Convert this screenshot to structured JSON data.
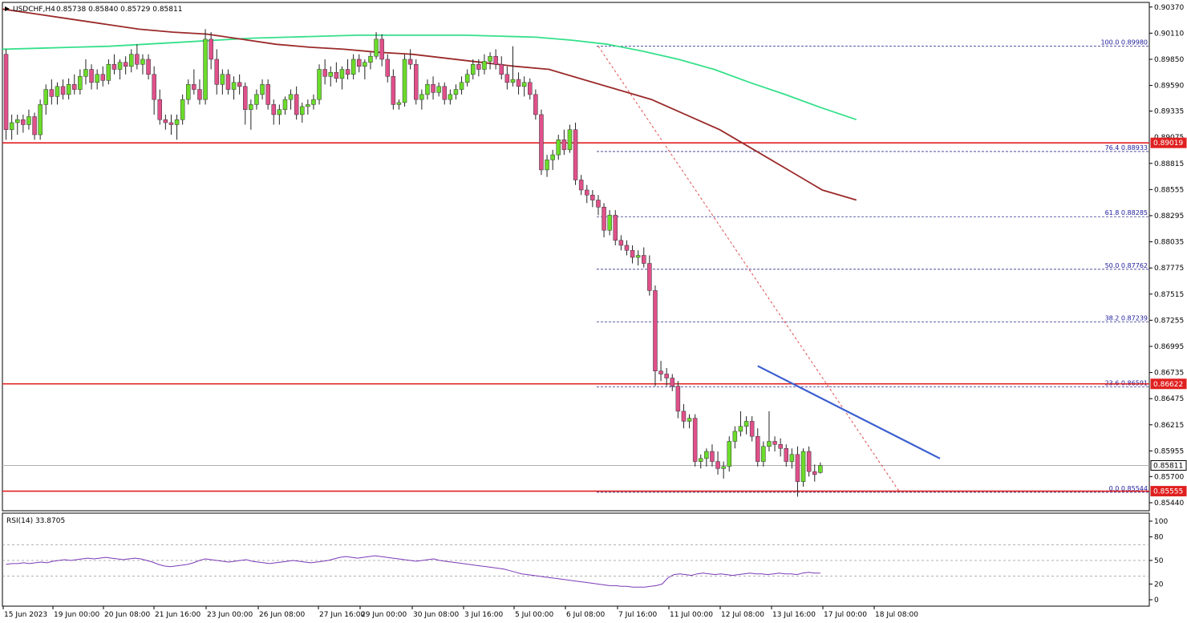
{
  "header": {
    "symbol": "USDCHF,H4",
    "ohlc": "0.85738 0.85840 0.85729 0.85811"
  },
  "rsi_header": "RSI(14) 33.8705",
  "colors": {
    "bull": "#6bdc2a",
    "bear": "#e0508a",
    "wick": "#222222",
    "ma_red": "#9b2a2a",
    "ma_green": "#35e08a",
    "support": "#e02020",
    "trend": "#3c5fd0",
    "fib_line": "#303090",
    "diag": "#e05050",
    "rsi": "#7b3ab8",
    "current_line": "#b0b0b0"
  },
  "chart_data": [
    {
      "type": "candlestick",
      "title": "USDCHF,H4",
      "ylim": [
        0.854,
        0.904
      ],
      "x_categories": [
        "15 Jun 2023",
        "19 Jun 00:00",
        "20 Jun 08:00",
        "21 Jun 16:00",
        "23 Jun 00:00",
        "26 Jun 08:00",
        "27 Jun 16:00",
        "29 Jun 00:00",
        "30 Jun 08:00",
        "3 Jul 16:00",
        "5 Jul 00:00",
        "6 Jul 08:00",
        "7 Jul 16:00",
        "11 Jul 00:00",
        "12 Jul 08:00",
        "13 Jul 16:00",
        "17 Jul 00:00",
        "18 Jul 08:00"
      ],
      "y_ticks": [
        "0.90370",
        "0.90110",
        "0.89850",
        "0.89590",
        "0.89335",
        "0.88815",
        "0.88555",
        "0.88295",
        "0.88035",
        "0.87775",
        "0.87515",
        "0.87255",
        "0.86995",
        "0.86735",
        "0.86475",
        "0.86215",
        "0.85955",
        "0.85700",
        "0.85440"
      ],
      "overlay_tick": "0.89075",
      "price_boxes": [
        {
          "label": "0.89019",
          "value": 0.89019,
          "style": "red"
        },
        {
          "label": "0.86622",
          "value": 0.86622,
          "style": "red"
        },
        {
          "label": "0.85811",
          "value": 0.85811,
          "style": "current"
        },
        {
          "label": "0.85555",
          "value": 0.85555,
          "style": "red"
        }
      ],
      "support_levels": [
        0.89019,
        0.86622,
        0.85555
      ],
      "current_price": 0.85811,
      "fibonacci": [
        {
          "label": "100.0 0.89980",
          "value": 0.8998
        },
        {
          "label": "76.4 0.88933",
          "value": 0.88933
        },
        {
          "label": "61.8 0.88285",
          "value": 0.88285
        },
        {
          "label": "50.0 0.87762",
          "value": 0.87762
        },
        {
          "label": "38.2 0.87239",
          "value": 0.87239
        },
        {
          "label": "23.6 0.86591",
          "value": 0.86591
        },
        {
          "label": "0.0 0.85544",
          "value": 0.85544
        }
      ],
      "candles": [
        [
          0.899,
          0.8995,
          0.8905,
          0.8915
        ],
        [
          0.8915,
          0.893,
          0.8905,
          0.8922
        ],
        [
          0.8922,
          0.893,
          0.891,
          0.8925
        ],
        [
          0.8925,
          0.893,
          0.8912,
          0.892
        ],
        [
          0.892,
          0.8935,
          0.8915,
          0.8928
        ],
        [
          0.8928,
          0.8932,
          0.8905,
          0.891
        ],
        [
          0.891,
          0.8945,
          0.8905,
          0.894
        ],
        [
          0.894,
          0.896,
          0.893,
          0.8955
        ],
        [
          0.8955,
          0.8965,
          0.894,
          0.8948
        ],
        [
          0.8948,
          0.8962,
          0.894,
          0.8958
        ],
        [
          0.8958,
          0.8965,
          0.8945,
          0.895
        ],
        [
          0.895,
          0.8966,
          0.8945,
          0.896
        ],
        [
          0.896,
          0.897,
          0.895,
          0.8955
        ],
        [
          0.8955,
          0.8975,
          0.895,
          0.8968
        ],
        [
          0.8968,
          0.8985,
          0.896,
          0.8975
        ],
        [
          0.8975,
          0.898,
          0.8955,
          0.8962
        ],
        [
          0.8962,
          0.8975,
          0.8955,
          0.897
        ],
        [
          0.897,
          0.8978,
          0.8958,
          0.8964
        ],
        [
          0.8964,
          0.8985,
          0.896,
          0.898
        ],
        [
          0.898,
          0.899,
          0.897,
          0.8975
        ],
        [
          0.8975,
          0.8985,
          0.8965,
          0.8982
        ],
        [
          0.8982,
          0.8988,
          0.897,
          0.8978
        ],
        [
          0.8978,
          0.8995,
          0.8972,
          0.899
        ],
        [
          0.899,
          0.9,
          0.8975,
          0.898
        ],
        [
          0.898,
          0.899,
          0.897,
          0.8985
        ],
        [
          0.8985,
          0.899,
          0.8965,
          0.897
        ],
        [
          0.897,
          0.8978,
          0.893,
          0.8945
        ],
        [
          0.8945,
          0.8955,
          0.892,
          0.8925
        ],
        [
          0.8925,
          0.893,
          0.8915,
          0.8922
        ],
        [
          0.8922,
          0.893,
          0.891,
          0.892
        ],
        [
          0.892,
          0.893,
          0.8905,
          0.8925
        ],
        [
          0.8925,
          0.895,
          0.892,
          0.8945
        ],
        [
          0.8945,
          0.8965,
          0.894,
          0.896
        ],
        [
          0.896,
          0.8975,
          0.895,
          0.8955
        ],
        [
          0.8955,
          0.8965,
          0.894,
          0.8945
        ],
        [
          0.8945,
          0.9015,
          0.894,
          0.9005
        ],
        [
          0.9005,
          0.9012,
          0.8975,
          0.8985
        ],
        [
          0.8985,
          0.8995,
          0.895,
          0.896
        ],
        [
          0.896,
          0.8975,
          0.895,
          0.897
        ],
        [
          0.897,
          0.8975,
          0.895,
          0.8955
        ],
        [
          0.8955,
          0.8968,
          0.8945,
          0.8962
        ],
        [
          0.8962,
          0.897,
          0.895,
          0.8958
        ],
        [
          0.8958,
          0.8962,
          0.892,
          0.8935
        ],
        [
          0.8935,
          0.8945,
          0.8915,
          0.894
        ],
        [
          0.894,
          0.8955,
          0.8935,
          0.895
        ],
        [
          0.895,
          0.8965,
          0.8945,
          0.896
        ],
        [
          0.896,
          0.8965,
          0.8935,
          0.894
        ],
        [
          0.894,
          0.8945,
          0.892,
          0.893
        ],
        [
          0.893,
          0.894,
          0.892,
          0.8935
        ],
        [
          0.8935,
          0.8948,
          0.893,
          0.8945
        ],
        [
          0.8945,
          0.8955,
          0.8935,
          0.895
        ],
        [
          0.895,
          0.8958,
          0.8925,
          0.893
        ],
        [
          0.893,
          0.8942,
          0.8922,
          0.8938
        ],
        [
          0.8938,
          0.8945,
          0.893,
          0.894
        ],
        [
          0.894,
          0.895,
          0.8935,
          0.8945
        ],
        [
          0.8945,
          0.898,
          0.894,
          0.8975
        ],
        [
          0.8975,
          0.8985,
          0.896,
          0.8968
        ],
        [
          0.8968,
          0.8978,
          0.8958,
          0.8972
        ],
        [
          0.8972,
          0.8982,
          0.8962,
          0.8966
        ],
        [
          0.8966,
          0.8978,
          0.8955,
          0.8975
        ],
        [
          0.8975,
          0.8985,
          0.8965,
          0.897
        ],
        [
          0.897,
          0.899,
          0.8965,
          0.8985
        ],
        [
          0.8985,
          0.899,
          0.8972,
          0.8978
        ],
        [
          0.8978,
          0.8985,
          0.8965,
          0.8982
        ],
        [
          0.8982,
          0.8992,
          0.8975,
          0.8988
        ],
        [
          0.8988,
          0.9012,
          0.8985,
          0.9005
        ],
        [
          0.9005,
          0.901,
          0.8978,
          0.8985
        ],
        [
          0.8985,
          0.899,
          0.8962,
          0.8968
        ],
        [
          0.8968,
          0.8975,
          0.8935,
          0.894
        ],
        [
          0.894,
          0.8945,
          0.8935,
          0.8942
        ],
        [
          0.8942,
          0.899,
          0.8938,
          0.8985
        ],
        [
          0.8985,
          0.8995,
          0.8975,
          0.898
        ],
        [
          0.898,
          0.8985,
          0.894,
          0.8945
        ],
        [
          0.8945,
          0.8955,
          0.8935,
          0.895
        ],
        [
          0.895,
          0.8965,
          0.8945,
          0.896
        ],
        [
          0.896,
          0.8968,
          0.8945,
          0.8952
        ],
        [
          0.8952,
          0.8962,
          0.8948,
          0.8958
        ],
        [
          0.8958,
          0.8962,
          0.894,
          0.8945
        ],
        [
          0.8945,
          0.8955,
          0.894,
          0.895
        ],
        [
          0.895,
          0.896,
          0.8945,
          0.8955
        ],
        [
          0.8955,
          0.8968,
          0.895,
          0.8962
        ],
        [
          0.8962,
          0.8975,
          0.8958,
          0.897
        ],
        [
          0.897,
          0.8985,
          0.8965,
          0.898
        ],
        [
          0.898,
          0.8985,
          0.8968,
          0.8975
        ],
        [
          0.8975,
          0.899,
          0.897,
          0.8983
        ],
        [
          0.8983,
          0.8992,
          0.8975,
          0.8988
        ],
        [
          0.8988,
          0.8995,
          0.8975,
          0.898
        ],
        [
          0.898,
          0.8988,
          0.8965,
          0.897
        ],
        [
          0.897,
          0.8978,
          0.8955,
          0.8962
        ],
        [
          0.8962,
          0.8998,
          0.8958,
          0.8965
        ],
        [
          0.8965,
          0.8972,
          0.895,
          0.8958
        ],
        [
          0.8958,
          0.8968,
          0.8948,
          0.8962
        ],
        [
          0.8962,
          0.8966,
          0.8945,
          0.895
        ],
        [
          0.895,
          0.8955,
          0.8925,
          0.893
        ],
        [
          0.893,
          0.8935,
          0.887,
          0.8875
        ],
        [
          0.8875,
          0.889,
          0.8868,
          0.8885
        ],
        [
          0.8885,
          0.8895,
          0.8875,
          0.889
        ],
        [
          0.889,
          0.891,
          0.8885,
          0.8905
        ],
        [
          0.8905,
          0.8915,
          0.889,
          0.8895
        ],
        [
          0.8895,
          0.892,
          0.8892,
          0.8915
        ],
        [
          0.8915,
          0.8922,
          0.886,
          0.8865
        ],
        [
          0.8865,
          0.887,
          0.885,
          0.8855
        ],
        [
          0.8855,
          0.886,
          0.8842,
          0.885
        ],
        [
          0.885,
          0.8855,
          0.8838,
          0.8845
        ],
        [
          0.8845,
          0.885,
          0.883,
          0.8838
        ],
        [
          0.8838,
          0.8842,
          0.8808,
          0.8815
        ],
        [
          0.8815,
          0.8835,
          0.881,
          0.883
        ],
        [
          0.883,
          0.8835,
          0.88,
          0.8805
        ],
        [
          0.8805,
          0.881,
          0.8795,
          0.88
        ],
        [
          0.88,
          0.8805,
          0.879,
          0.8795
        ],
        [
          0.8795,
          0.88,
          0.8782,
          0.8788
        ],
        [
          0.8788,
          0.8795,
          0.878,
          0.879
        ],
        [
          0.879,
          0.8798,
          0.8778,
          0.8782
        ],
        [
          0.8782,
          0.879,
          0.875,
          0.8755
        ],
        [
          0.8755,
          0.876,
          0.866,
          0.8675
        ],
        [
          0.8675,
          0.8685,
          0.8665,
          0.8672
        ],
        [
          0.8672,
          0.8678,
          0.866,
          0.8668
        ],
        [
          0.8668,
          0.8672,
          0.8655,
          0.866
        ],
        [
          0.866,
          0.8665,
          0.8628,
          0.8635
        ],
        [
          0.8635,
          0.8642,
          0.8618,
          0.8625
        ],
        [
          0.8625,
          0.8632,
          0.8618,
          0.8628
        ],
        [
          0.8628,
          0.8632,
          0.858,
          0.8585
        ],
        [
          0.8585,
          0.8592,
          0.8578,
          0.8588
        ],
        [
          0.8588,
          0.8598,
          0.858,
          0.8595
        ],
        [
          0.8595,
          0.8602,
          0.858,
          0.8585
        ],
        [
          0.8585,
          0.8595,
          0.8572,
          0.8578
        ],
        [
          0.8578,
          0.8585,
          0.8568,
          0.858
        ],
        [
          0.858,
          0.861,
          0.8575,
          0.8605
        ],
        [
          0.8605,
          0.862,
          0.8598,
          0.8615
        ],
        [
          0.8615,
          0.8635,
          0.861,
          0.862
        ],
        [
          0.862,
          0.863,
          0.8612,
          0.8625
        ],
        [
          0.8625,
          0.863,
          0.8605,
          0.861
        ],
        [
          0.861,
          0.8618,
          0.858,
          0.8585
        ],
        [
          0.8585,
          0.8605,
          0.858,
          0.86
        ],
        [
          0.86,
          0.8635,
          0.8595,
          0.8605
        ],
        [
          0.8605,
          0.861,
          0.8595,
          0.8602
        ],
        [
          0.8602,
          0.8608,
          0.859,
          0.8598
        ],
        [
          0.8598,
          0.8602,
          0.858,
          0.8585
        ],
        [
          0.8585,
          0.8598,
          0.8578,
          0.8592
        ],
        [
          0.8592,
          0.86,
          0.855,
          0.8565
        ],
        [
          0.8565,
          0.8598,
          0.856,
          0.8595
        ],
        [
          0.8595,
          0.86,
          0.857,
          0.8575
        ],
        [
          0.8575,
          0.8582,
          0.8565,
          0.8572
        ],
        [
          0.8574,
          0.8584,
          0.8573,
          0.8581
        ]
      ],
      "ma_red": [
        0.9035,
        0.903,
        0.9025,
        0.902,
        0.9015,
        0.9012,
        0.901,
        0.9005,
        0.9,
        0.8997,
        0.8995,
        0.8992,
        0.899,
        0.8986,
        0.8982,
        0.8978,
        0.8975,
        0.8965,
        0.8955,
        0.8945,
        0.893,
        0.8915,
        0.8895,
        0.8875,
        0.8855,
        0.8845
      ],
      "ma_green": [
        0.8995,
        0.8996,
        0.8997,
        0.8998,
        0.9,
        0.9002,
        0.9004,
        0.9006,
        0.9007,
        0.9008,
        0.9009,
        0.9009,
        0.9009,
        0.9009,
        0.9008,
        0.9007,
        0.9004,
        0.9,
        0.8993,
        0.8985,
        0.8975,
        0.8962,
        0.895,
        0.8937,
        0.8925
      ],
      "trendline": [
        [
          132,
          0.868
        ],
        [
          164,
          0.8588
        ]
      ],
      "fib_diagonal": [
        [
          104,
          0.8998
        ],
        [
          157,
          0.8554
        ]
      ]
    },
    {
      "type": "line",
      "title": "RSI(14) 33.8705",
      "ylim": [
        0,
        100
      ],
      "y_ticks": [
        "100",
        "80",
        "50",
        "20",
        "0"
      ],
      "levels": [
        30,
        50,
        70
      ],
      "values": [
        45,
        46,
        46,
        47,
        46,
        47,
        48,
        47,
        49,
        50,
        51,
        50,
        51,
        52,
        53,
        52,
        53,
        54,
        53,
        52,
        51,
        52,
        53,
        52,
        50,
        48,
        45,
        43,
        42,
        43,
        44,
        45,
        47,
        50,
        52,
        51,
        50,
        49,
        48,
        49,
        50,
        51,
        49,
        48,
        47,
        46,
        47,
        48,
        49,
        50,
        49,
        48,
        47,
        48,
        49,
        50,
        52,
        54,
        55,
        54,
        53,
        54,
        55,
        56,
        55,
        54,
        53,
        52,
        51,
        50,
        49,
        50,
        51,
        52,
        50,
        49,
        48,
        47,
        46,
        45,
        44,
        43,
        42,
        41,
        40,
        39,
        37,
        35,
        33,
        32,
        31,
        30,
        29,
        28,
        27,
        26,
        25,
        24,
        23,
        22,
        21,
        20,
        19,
        18,
        18,
        17,
        17,
        16,
        16,
        16,
        17,
        18,
        20,
        28,
        32,
        33,
        32,
        31,
        33,
        34,
        33,
        32,
        33,
        32,
        31,
        32,
        33,
        34,
        33,
        33,
        32,
        33,
        34,
        33,
        33,
        32,
        34,
        35,
        34,
        34
      ]
    }
  ]
}
